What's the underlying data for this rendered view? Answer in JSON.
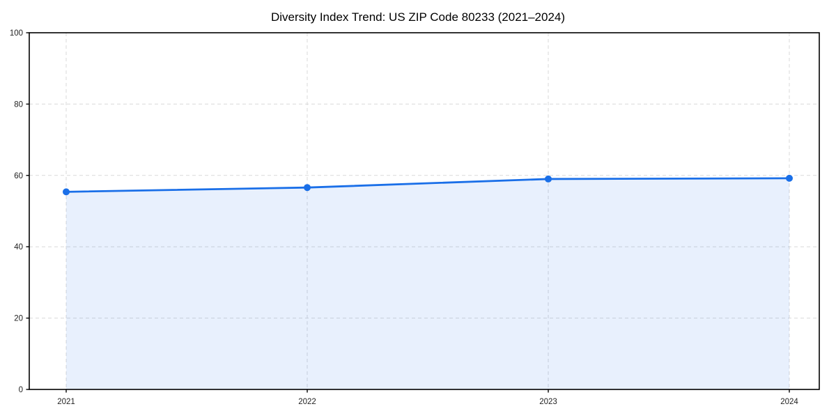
{
  "chart_data": {
    "type": "line",
    "title": "Diversity Index Trend: US ZIP Code 80233 (2021–2024)",
    "categories": [
      "2021",
      "2022",
      "2023",
      "2024"
    ],
    "x": [
      2021,
      2022,
      2023,
      2024
    ],
    "series": [
      {
        "name": "Diversity Index",
        "values": [
          55.4,
          56.6,
          59.0,
          59.2
        ]
      }
    ],
    "xlabel": "",
    "ylabel": "",
    "ylim": [
      0,
      100
    ],
    "yticks": [
      0,
      20,
      40,
      60,
      80,
      100
    ],
    "grid": true,
    "grid_style": "dashed",
    "legend": false,
    "area_fill": true,
    "markers": true,
    "colors": {
      "line": "#1a6fe8",
      "marker": "#1a6fe8",
      "area_fill": "#1a6fe8",
      "area_fill_opacity": "0.10",
      "grid": "#d9d9d9",
      "spine": "#000000",
      "tick_text": "#222222",
      "background": "#ffffff"
    }
  }
}
